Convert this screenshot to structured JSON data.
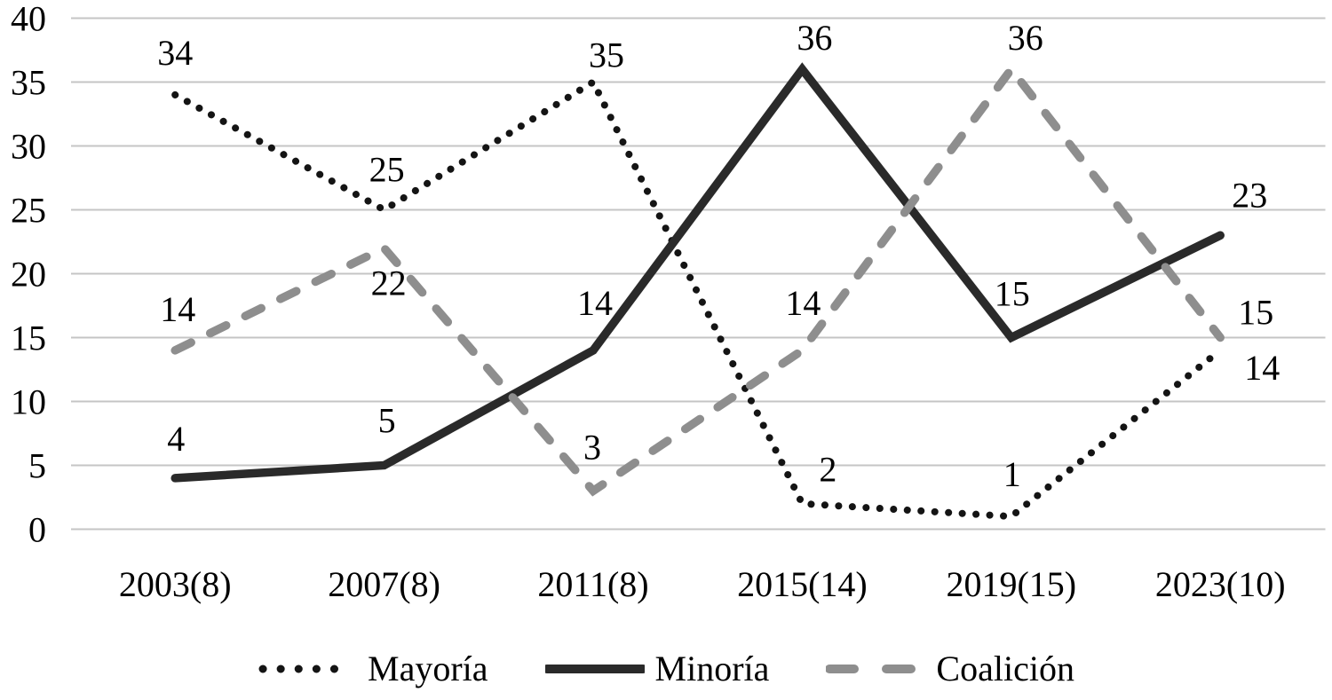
{
  "chart_data": {
    "type": "line",
    "title": "",
    "xlabel": "",
    "ylabel": "",
    "categories": [
      "2003(8)",
      "2007(8)",
      "2011(8)",
      "2015(14)",
      "2019(15)",
      "2023(10)"
    ],
    "series": [
      {
        "name": "Mayoría",
        "id": "mayoria",
        "line_style": "dotted",
        "color": "#141414",
        "values": [
          34,
          25,
          35,
          2,
          1,
          14
        ]
      },
      {
        "name": "Minoría",
        "id": "minoria",
        "line_style": "solid",
        "color": "#2a2a2a",
        "values": [
          4,
          5,
          14,
          36,
          15,
          23
        ]
      },
      {
        "name": "Coalición",
        "id": "coalicion",
        "line_style": "dashed",
        "color": "#8e8e8e",
        "values": [
          14,
          22,
          3,
          14,
          36,
          15
        ]
      }
    ],
    "y_axis": {
      "min": 0,
      "max": 40,
      "step": 5,
      "tick_labels": [
        "0",
        "5",
        "10",
        "15",
        "20",
        "25",
        "30",
        "35",
        "40"
      ]
    },
    "grid": "horizontal",
    "legend_position": "bottom",
    "data_labels_shown": true,
    "colors": {
      "gridline": "#c5c5c5",
      "text": "#000000",
      "background": "#ffffff"
    },
    "label_offsets": [
      [
        [
          0,
          -48
        ],
        [
          3,
          -46
        ],
        [
          15,
          -31
        ],
        [
          29,
          -39
        ],
        [
          1,
          -48
        ],
        [
          47,
          19
        ]
      ],
      [
        [
          1,
          -45
        ],
        [
          3,
          -51
        ],
        [
          2,
          -54
        ],
        [
          14,
          -36
        ],
        [
          1,
          -50
        ],
        [
          33,
          -46
        ]
      ],
      [
        [
          3,
          -47
        ],
        [
          5,
          39
        ],
        [
          -1,
          -50
        ],
        [
          1,
          -54
        ],
        [
          16,
          -36
        ],
        [
          40,
          -29
        ]
      ]
    ]
  }
}
